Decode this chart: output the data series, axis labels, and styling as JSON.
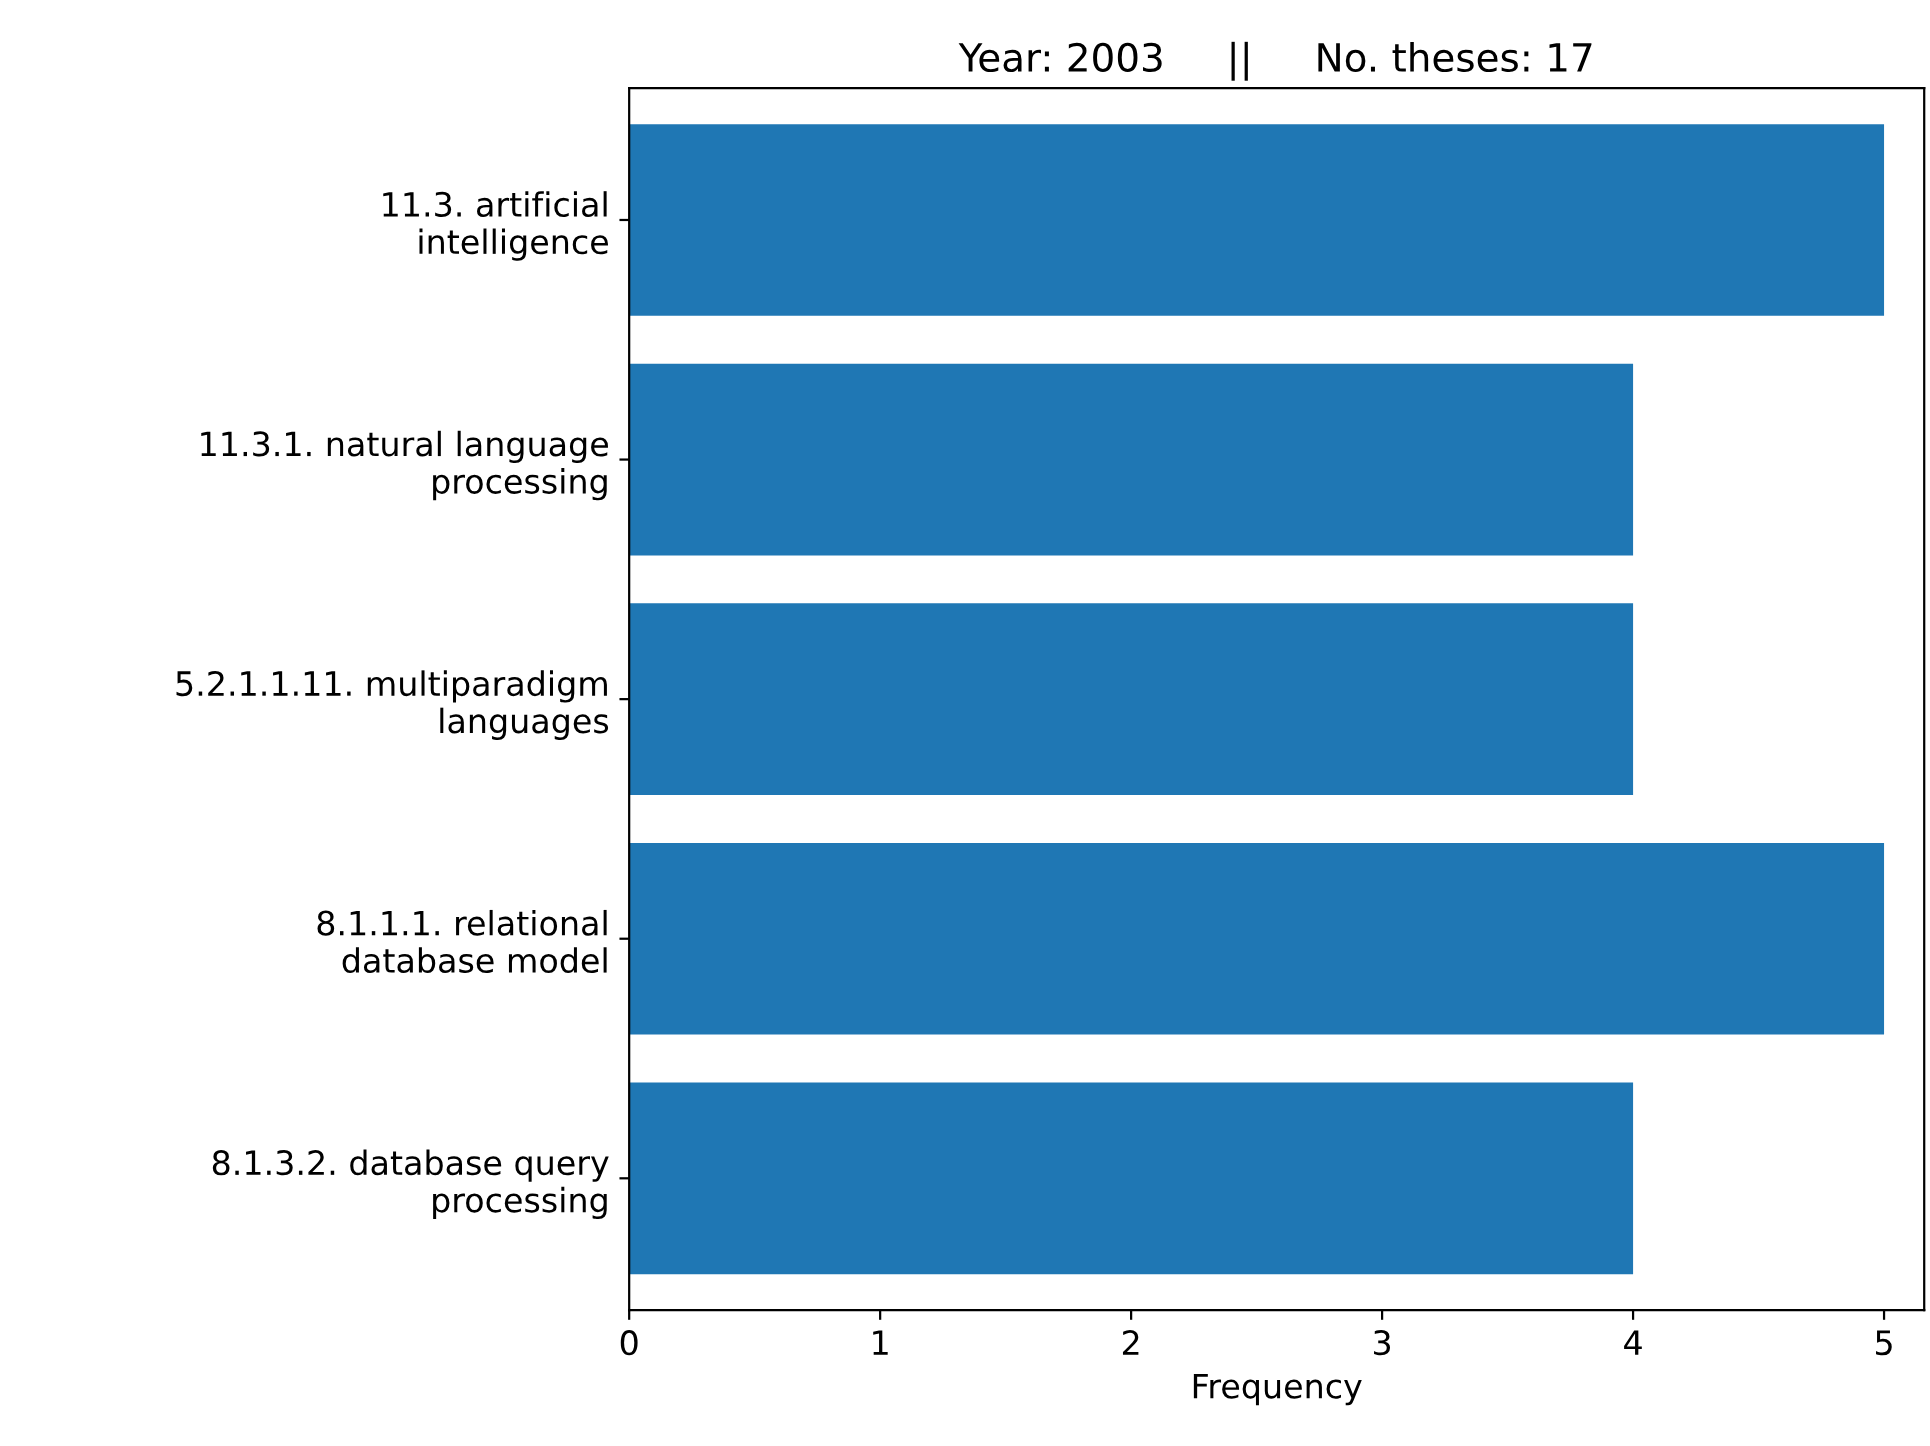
{
  "chart_data": {
    "type": "bar",
    "orientation": "horizontal",
    "title": "Year: 2003     ||     No. theses: 17",
    "xlabel": "Frequency",
    "categories": [
      "11.3. artificial\nintelligence",
      "11.3.1. natural language\nprocessing",
      "5.2.1.1.11. multiparadigm\nlanguages",
      "8.1.1.1. relational\ndatabase model",
      "8.1.3.2. database query\nprocessing"
    ],
    "values": [
      5,
      4,
      4,
      5,
      4
    ],
    "color": "#1f77b4",
    "xlim": [
      0,
      5.16
    ],
    "xticks": [
      0,
      1,
      2,
      3,
      4,
      5
    ],
    "grid": false,
    "legend": false
  }
}
